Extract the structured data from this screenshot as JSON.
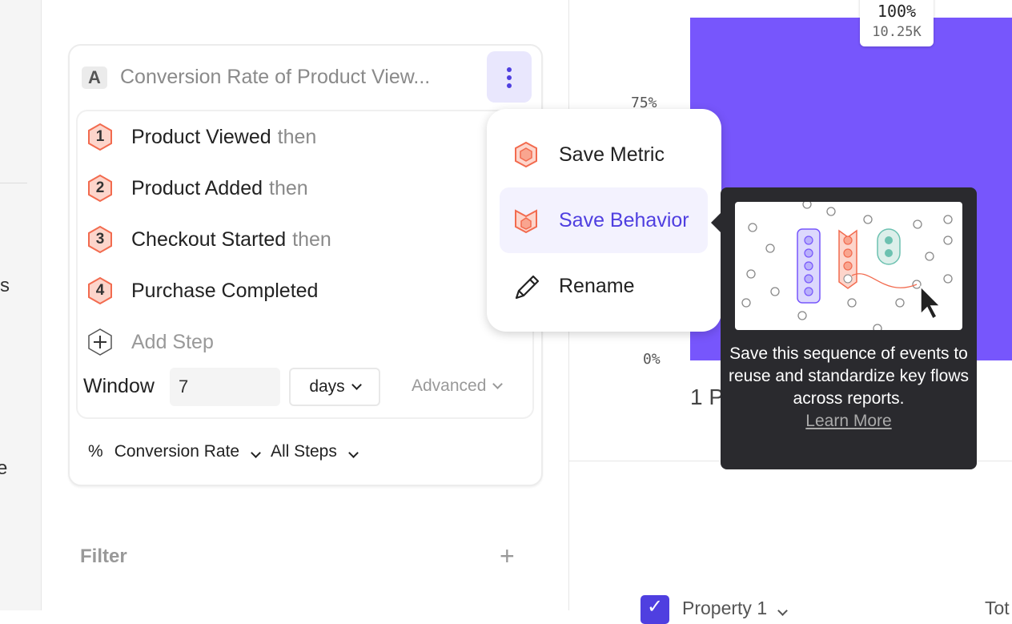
{
  "sidebar": {
    "fragments": [
      "s",
      "e"
    ]
  },
  "metric": {
    "letter": "A",
    "title": "Conversion Rate of Product View...",
    "steps": [
      {
        "num": "1",
        "name": "Product Viewed",
        "suffix": "then"
      },
      {
        "num": "2",
        "name": "Product Added",
        "suffix": "then"
      },
      {
        "num": "3",
        "name": "Checkout Started",
        "suffix": "then"
      },
      {
        "num": "4",
        "name": "Purchase Completed",
        "suffix": ""
      }
    ],
    "add_step": "Add Step",
    "window_label": "Window",
    "window_value": "7",
    "window_unit": "days",
    "advanced": "Advanced",
    "measure_icon": "%",
    "measure": "Conversion Rate",
    "steps_scope": "All Steps"
  },
  "filter": {
    "label": "Filter"
  },
  "menu": {
    "items": [
      {
        "label": "Save Metric",
        "icon": "metric-hex-icon"
      },
      {
        "label": "Save Behavior",
        "icon": "behavior-icon",
        "active": true
      },
      {
        "label": "Rename",
        "icon": "pencil-icon"
      }
    ]
  },
  "tooltip": {
    "text": "Save this sequence of events to reuse and standardize key flows across reports.",
    "link": "Learn More"
  },
  "chart": {
    "bar_pct": "100%",
    "bar_count": "10.25K",
    "ticks": [
      "75%",
      "0%"
    ],
    "category": "1 P",
    "bar_color": "#7756fc"
  },
  "table": {
    "property": "Property 1",
    "total": "Tot"
  },
  "colors": {
    "accent": "#4f3fe0",
    "step": "#f26b4f",
    "step_fill": "#fdd5cb"
  }
}
